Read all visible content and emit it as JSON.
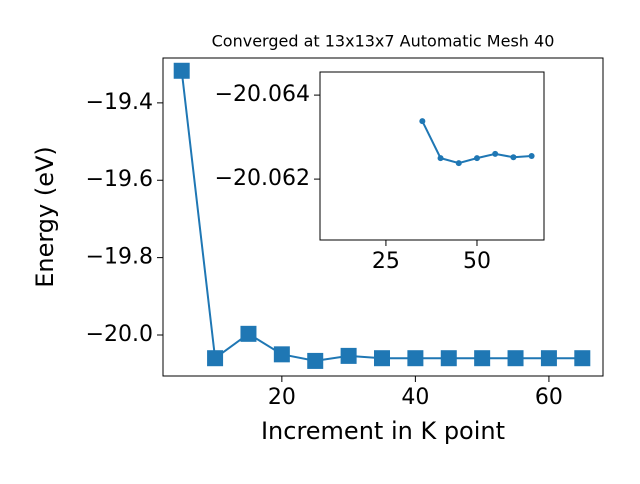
{
  "chart_data": [
    {
      "type": "line",
      "title": "Converged at 13x13x7 Automatic Mesh 40",
      "x_label": "Increment in K point",
      "y_label": "Energy (eV)",
      "x": [
        5,
        10,
        15,
        20,
        25,
        30,
        35,
        40,
        45,
        50,
        55,
        60,
        65
      ],
      "series": [
        {
          "color": "#1f77b4",
          "marker": "square",
          "values": [
            -19.317,
            -20.06,
            -19.997,
            -20.05,
            -20.067,
            -20.054,
            -20.06,
            -20.06,
            -20.06,
            -20.06,
            -20.06,
            -20.06,
            -20.06
          ]
        }
      ],
      "xlim": [
        2.2,
        68.1
      ],
      "ylim": [
        -20.106,
        -19.284
      ],
      "xticks": [
        20,
        40,
        60
      ],
      "yticks": [
        {
          "value": -19.4,
          "label": "−19.4"
        },
        {
          "value": -19.6,
          "label": "−19.6"
        },
        {
          "value": -19.8,
          "label": "−19.8"
        },
        {
          "value": -20.0,
          "label": "−20.0"
        }
      ]
    },
    {
      "type": "line",
      "x": [
        35,
        40,
        45,
        50,
        55,
        60,
        65
      ],
      "series": [
        {
          "color": "#1f77b4",
          "marker": "circle",
          "values": [
            -20.06338,
            -20.0625,
            -20.06238,
            -20.0625,
            -20.0626,
            -20.06252,
            -20.06255
          ]
        }
      ],
      "xlim": [
        6.9,
        68.4
      ],
      "ylim": [
        -20.06055,
        -20.06455
      ],
      "xticks": [
        25,
        50
      ],
      "yticks": [
        {
          "value": -20.064,
          "label": "−20.064"
        },
        {
          "value": -20.062,
          "label": "−20.062"
        }
      ]
    }
  ]
}
